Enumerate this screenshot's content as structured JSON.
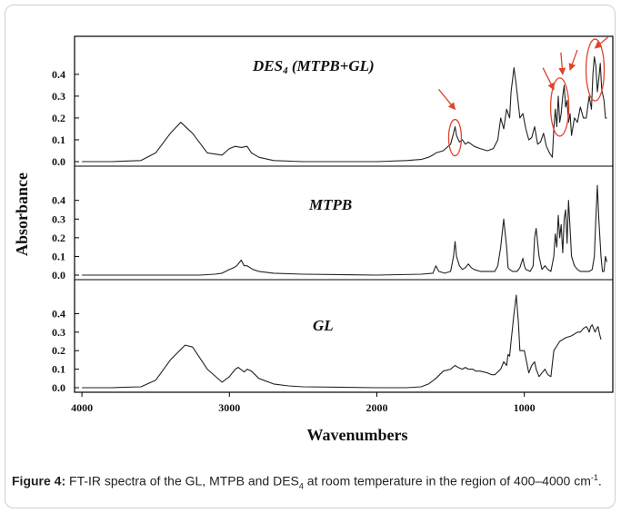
{
  "figure": {
    "caption_label": "Figure 4:",
    "caption_pre": " FT-IR spectra of the GL, MTPB and DES",
    "caption_sub": "4",
    "caption_mid": " at room temperature in the region of 400–4000 cm",
    "caption_sup": "-1",
    "caption_end": "."
  },
  "chart_data": {
    "type": "line",
    "xlabel": "Wavenumbers",
    "ylabel": "Absorbance",
    "x_ticks": [
      4000,
      3000,
      2000,
      1000
    ],
    "xlim": [
      4050,
      400
    ],
    "x_reversed": true,
    "y_ticks": [
      0.0,
      0.1,
      0.2,
      0.3,
      0.4
    ],
    "y_tick_labels": [
      "0.0",
      "0.1",
      "0.2",
      "0.3",
      "0.4"
    ],
    "panels": [
      {
        "label_main": "DES",
        "label_sub": "4",
        "label_rest": " (MTPB+GL)",
        "ylim": [
          0,
          0.52
        ],
        "arrows_at": [
          1470,
          800,
          740,
          690,
          520
        ],
        "circles_at": [
          1470,
          760,
          520
        ],
        "series": {
          "x": [
            4000,
            3800,
            3600,
            3500,
            3400,
            3330,
            3250,
            3150,
            3050,
            3000,
            2960,
            2920,
            2880,
            2850,
            2800,
            2700,
            2500,
            2200,
            2000,
            1800,
            1700,
            1650,
            1620,
            1600,
            1550,
            1500,
            1480,
            1470,
            1460,
            1440,
            1420,
            1400,
            1380,
            1340,
            1300,
            1250,
            1210,
            1180,
            1160,
            1140,
            1120,
            1100,
            1090,
            1070,
            1055,
            1040,
            1030,
            1010,
            990,
            970,
            950,
            930,
            910,
            890,
            870,
            850,
            830,
            810,
            800,
            790,
            780,
            770,
            760,
            750,
            740,
            730,
            720,
            710,
            700,
            690,
            680,
            660,
            640,
            620,
            600,
            580,
            560,
            545,
            535,
            525,
            515,
            505,
            495,
            485,
            475,
            460,
            450,
            440
          ],
          "y": [
            0,
            0,
            0.005,
            0.04,
            0.13,
            0.18,
            0.13,
            0.04,
            0.03,
            0.06,
            0.07,
            0.065,
            0.07,
            0.04,
            0.02,
            0.005,
            0,
            0,
            0,
            0.005,
            0.01,
            0.02,
            0.03,
            0.04,
            0.05,
            0.08,
            0.13,
            0.16,
            0.12,
            0.09,
            0.1,
            0.08,
            0.09,
            0.07,
            0.06,
            0.05,
            0.06,
            0.1,
            0.2,
            0.15,
            0.24,
            0.2,
            0.32,
            0.43,
            0.35,
            0.26,
            0.2,
            0.22,
            0.15,
            0.1,
            0.11,
            0.16,
            0.08,
            0.09,
            0.13,
            0.07,
            0.04,
            0.02,
            0.15,
            0.24,
            0.16,
            0.3,
            0.18,
            0.22,
            0.3,
            0.35,
            0.25,
            0.28,
            0.18,
            0.22,
            0.12,
            0.2,
            0.18,
            0.25,
            0.2,
            0.2,
            0.3,
            0.24,
            0.4,
            0.48,
            0.44,
            0.32,
            0.38,
            0.45,
            0.33,
            0.28,
            0.2,
            0.2
          ]
        }
      },
      {
        "label_main": "MTPB",
        "ylim": [
          0,
          0.52
        ],
        "series": {
          "x": [
            4000,
            3500,
            3200,
            3100,
            3050,
            3000,
            2970,
            2950,
            2920,
            2900,
            2880,
            2860,
            2840,
            2800,
            2700,
            2500,
            2000,
            1700,
            1620,
            1600,
            1580,
            1540,
            1500,
            1490,
            1480,
            1470,
            1460,
            1440,
            1420,
            1400,
            1380,
            1360,
            1340,
            1300,
            1250,
            1200,
            1180,
            1160,
            1140,
            1120,
            1110,
            1100,
            1080,
            1050,
            1030,
            1010,
            1000,
            990,
            960,
            940,
            930,
            920,
            900,
            880,
            860,
            840,
            820,
            810,
            800,
            790,
            780,
            770,
            760,
            750,
            740,
            730,
            720,
            710,
            700,
            690,
            680,
            660,
            640,
            620,
            600,
            580,
            560,
            540,
            525,
            515,
            505,
            495,
            480,
            470,
            460,
            450,
            440
          ],
          "y": [
            0,
            0,
            0,
            0.005,
            0.01,
            0.03,
            0.04,
            0.05,
            0.08,
            0.05,
            0.05,
            0.04,
            0.03,
            0.02,
            0.01,
            0.005,
            0,
            0.005,
            0.01,
            0.05,
            0.02,
            0.01,
            0.02,
            0.06,
            0.1,
            0.18,
            0.1,
            0.05,
            0.03,
            0.04,
            0.06,
            0.04,
            0.03,
            0.02,
            0.02,
            0.02,
            0.05,
            0.15,
            0.3,
            0.15,
            0.04,
            0.03,
            0.02,
            0.02,
            0.04,
            0.09,
            0.05,
            0.03,
            0.02,
            0.05,
            0.2,
            0.25,
            0.1,
            0.03,
            0.05,
            0.03,
            0.02,
            0.06,
            0.1,
            0.22,
            0.15,
            0.32,
            0.2,
            0.27,
            0.12,
            0.3,
            0.35,
            0.17,
            0.4,
            0.25,
            0.1,
            0.05,
            0.03,
            0.02,
            0.02,
            0.02,
            0.02,
            0.03,
            0.1,
            0.3,
            0.48,
            0.3,
            0.1,
            0.02,
            0.02,
            0.1,
            0.07
          ]
        }
      },
      {
        "label_main": "GL",
        "ylim": [
          0,
          0.52
        ],
        "series": {
          "x": [
            4000,
            3800,
            3600,
            3500,
            3400,
            3300,
            3250,
            3150,
            3050,
            3000,
            2960,
            2940,
            2900,
            2880,
            2850,
            2800,
            2700,
            2600,
            2500,
            2000,
            1800,
            1700,
            1650,
            1600,
            1550,
            1500,
            1470,
            1450,
            1420,
            1400,
            1380,
            1350,
            1330,
            1300,
            1250,
            1220,
            1200,
            1160,
            1140,
            1120,
            1110,
            1100,
            1090,
            1070,
            1055,
            1040,
            1030,
            1000,
            990,
            970,
            950,
            930,
            920,
            900,
            880,
            860,
            840,
            820,
            800,
            760,
            720,
            680,
            640,
            620,
            600,
            580,
            570,
            560,
            550,
            540,
            530,
            520,
            510,
            500,
            490,
            480
          ],
          "y": [
            0,
            0,
            0.005,
            0.04,
            0.15,
            0.23,
            0.22,
            0.1,
            0.03,
            0.06,
            0.1,
            0.11,
            0.085,
            0.1,
            0.09,
            0.05,
            0.02,
            0.01,
            0.005,
            0,
            0,
            0.005,
            0.02,
            0.05,
            0.09,
            0.1,
            0.12,
            0.11,
            0.1,
            0.11,
            0.1,
            0.1,
            0.09,
            0.09,
            0.08,
            0.07,
            0.07,
            0.1,
            0.14,
            0.12,
            0.18,
            0.17,
            0.25,
            0.4,
            0.5,
            0.35,
            0.2,
            0.2,
            0.16,
            0.08,
            0.12,
            0.14,
            0.1,
            0.06,
            0.08,
            0.1,
            0.07,
            0.06,
            0.2,
            0.25,
            0.27,
            0.28,
            0.3,
            0.3,
            0.32,
            0.33,
            0.32,
            0.3,
            0.33,
            0.34,
            0.32,
            0.3,
            0.32,
            0.33,
            0.29,
            0.26
          ]
        }
      }
    ]
  }
}
